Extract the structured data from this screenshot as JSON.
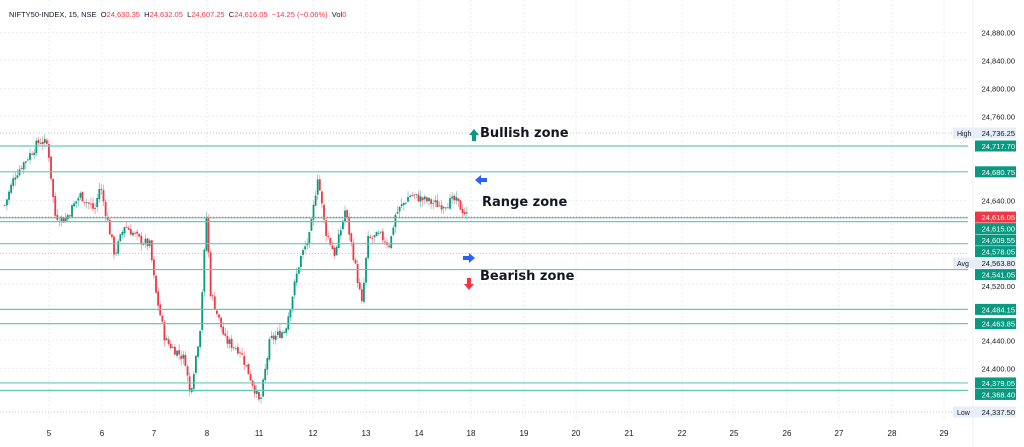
{
  "legend": {
    "symbol": "NIFTY50-INDEX, 15, NSE",
    "o_label": "O",
    "open": "24,630.35",
    "h_label": "H",
    "high": "24,632.05",
    "l_label": "L",
    "low": "24,607.25",
    "c_label": "C",
    "close": "24,616.05",
    "change": "−14.25 (−0.06%)",
    "vol_label": "Vol",
    "vol": "0"
  },
  "annotations": {
    "bullish": "Bullish zone",
    "range": "Range zone",
    "bearish": "Bearish zone"
  },
  "colors": {
    "up": "#089981",
    "down": "#f23645",
    "level": "#66c9b4",
    "arrow_blue": "#2962ff",
    "grid": "#e9ecf5"
  },
  "chart_data": {
    "type": "candlestick",
    "x_tick_labels": [
      "5",
      "6",
      "7",
      "8",
      "11",
      "12",
      "13",
      "14",
      "18",
      "19",
      "20",
      "21",
      "22",
      "25",
      "26",
      "27",
      "28",
      "29"
    ],
    "y_tick_labels": [
      "24,880.00",
      "24,840.00",
      "24,800.00",
      "24,760.00",
      "24,640.00",
      "24,520.00",
      "24,440.00",
      "24,400.00"
    ],
    "y_ticks": [
      24880,
      24840,
      24800,
      24760,
      24640,
      24520,
      24440,
      24400
    ],
    "ylim": [
      24320,
      24895
    ],
    "levels": [
      {
        "value": 24717.7,
        "label": "24,717.70"
      },
      {
        "value": 24680.75,
        "label": "24,680.75"
      },
      {
        "value": 24615.0,
        "label": "24,615.00"
      },
      {
        "value": 24609.55,
        "label": "24,609.55"
      },
      {
        "value": 24578.05,
        "label": "24,578.05"
      },
      {
        "value": 24541.05,
        "label": "24,541.05"
      },
      {
        "value": 24484.15,
        "label": "24,484.15"
      },
      {
        "value": 24463.85,
        "label": "24,463.85"
      },
      {
        "value": 24379.05,
        "label": "24,379.05"
      },
      {
        "value": 24368.4,
        "label": "24,368.40"
      }
    ],
    "last_price": {
      "value": 24616.05,
      "label": "24,616.05"
    },
    "high": {
      "tag": "High",
      "value": 24736.25,
      "label": "24,736.25"
    },
    "avg": {
      "tag": "Avg",
      "value": 24563.8,
      "label": "24,563.80"
    },
    "low": {
      "tag": "Low",
      "value": 24337.5,
      "label": "24,337.50"
    },
    "approx_close_path_day_units": [
      [
        -0.84,
        24633
      ],
      [
        -0.65,
        24676
      ],
      [
        -0.17,
        24726
      ],
      [
        -0.02,
        24719
      ],
      [
        0.11,
        24619
      ],
      [
        0.3,
        24612
      ],
      [
        0.59,
        24648
      ],
      [
        0.87,
        24626
      ],
      [
        0.97,
        24662
      ],
      [
        1.25,
        24562
      ],
      [
        1.44,
        24605
      ],
      [
        1.73,
        24583
      ],
      [
        1.92,
        24576
      ],
      [
        2.02,
        24512
      ],
      [
        2.21,
        24440
      ],
      [
        2.4,
        24426
      ],
      [
        2.59,
        24412
      ],
      [
        2.68,
        24362
      ],
      [
        2.87,
        24455
      ],
      [
        3.0,
        24626
      ],
      [
        3.06,
        24512
      ],
      [
        3.35,
        24440
      ],
      [
        3.63,
        24426
      ],
      [
        3.92,
        24369
      ],
      [
        4.01,
        24348
      ],
      [
        4.2,
        24440
      ],
      [
        4.49,
        24455
      ],
      [
        4.77,
        24555
      ],
      [
        4.96,
        24590
      ],
      [
        5.11,
        24676
      ],
      [
        5.25,
        24598
      ],
      [
        5.44,
        24562
      ],
      [
        5.63,
        24626
      ],
      [
        5.82,
        24548
      ],
      [
        5.95,
        24490
      ],
      [
        6.06,
        24583
      ],
      [
        6.29,
        24590
      ],
      [
        6.48,
        24576
      ],
      [
        6.58,
        24619
      ],
      [
        6.86,
        24648
      ],
      [
        7.15,
        24640
      ],
      [
        7.43,
        24633
      ],
      [
        7.72,
        24640
      ],
      [
        7.97,
        24616
      ]
    ]
  }
}
